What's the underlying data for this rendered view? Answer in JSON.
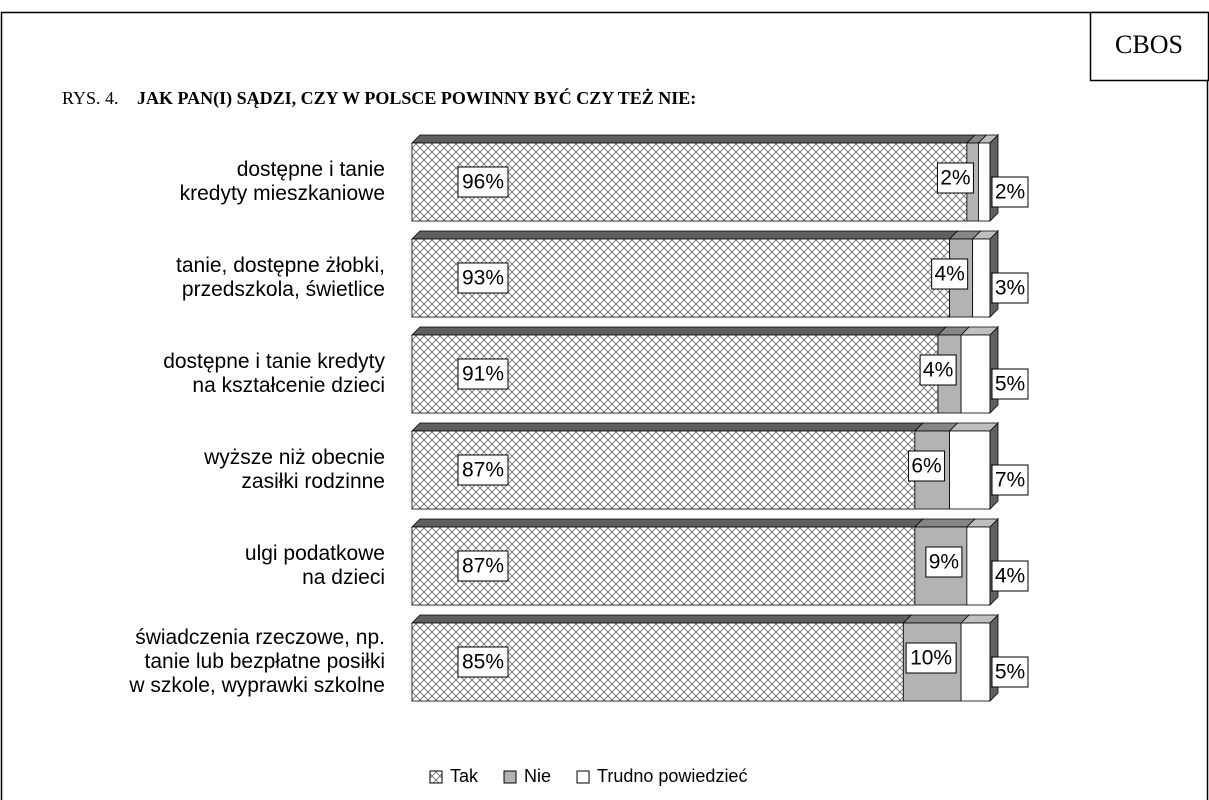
{
  "chart_data": {
    "type": "stacked-bar-horizontal",
    "source": "CBOS",
    "figure_label": "RYS. 4.",
    "title": "JAK PAN(I) SĄDZI, CZY W POLSCE POWINNY BYĆ CZY TEŻ NIE:",
    "categories": [
      "dostępne i tanie\nkredyty mieszkaniowe",
      "tanie, dostępne żłobki,\nprzedszkola, świetlice",
      "dostępne i tanie kredyty\nna kształcenie dzieci",
      "wyższe niż obecnie\nzasiłki rodzinne",
      "ulgi podatkowe\nna dzieci",
      "świadczenia rzeczowe, np.\ntanie lub bezpłatne posiłki\nw szkole, wyprawki szkolne"
    ],
    "xlim": [
      0,
      100
    ],
    "series": [
      {
        "name": "Tak",
        "color": "#707070",
        "pattern": "crosshatch",
        "values": [
          96,
          93,
          91,
          87,
          87,
          85
        ],
        "value_labels": [
          "96%",
          "93%",
          "91%",
          "87%",
          "87%",
          "85%"
        ]
      },
      {
        "name": "Nie",
        "color": "#b3b3b3",
        "values": [
          2,
          4,
          4,
          6,
          9,
          10
        ],
        "value_labels": [
          "2%",
          "4%",
          "4%",
          "6%",
          "9%",
          "10%"
        ]
      },
      {
        "name": "Trudno powiedzieć",
        "color": "#ffffff",
        "values": [
          2,
          3,
          5,
          7,
          4,
          5
        ],
        "value_labels": [
          "2%",
          "3%",
          "5%",
          "7%",
          "4%",
          "5%"
        ]
      }
    ],
    "legend": "bottom"
  }
}
